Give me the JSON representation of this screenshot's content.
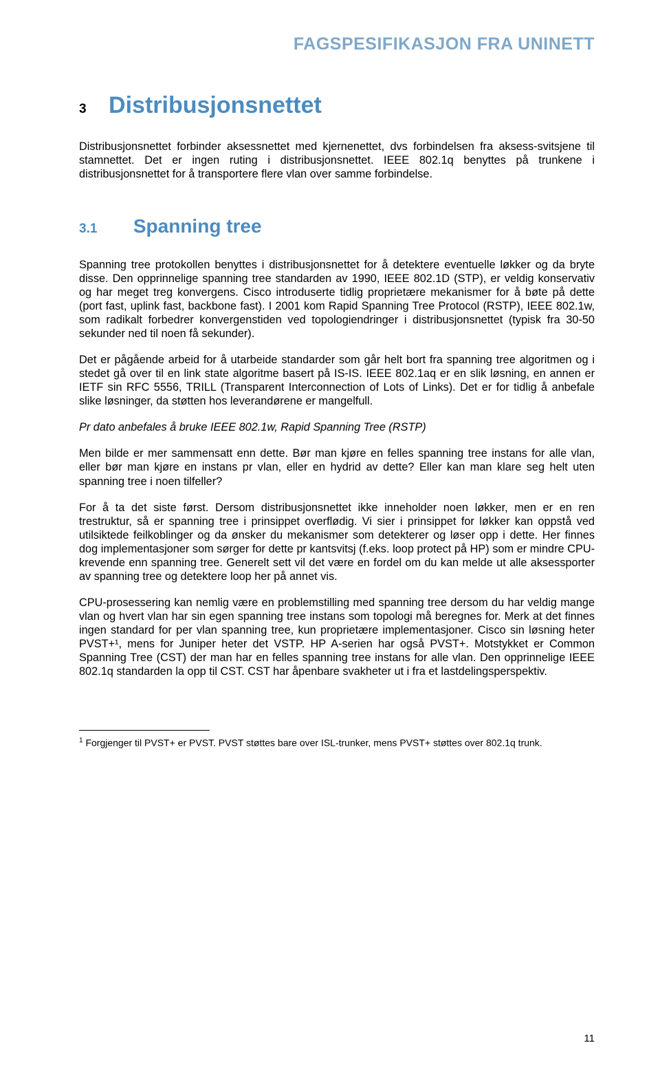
{
  "header": {
    "title": "FAGSPESIFIKASJON FRA UNINETT"
  },
  "section": {
    "number": "3",
    "title": "Distribusjonsnettet",
    "intro": "Distribusjonsnettet forbinder aksessnettet med kjernenettet, dvs forbindelsen fra aksess-svitsjene til stamnettet. Det er ingen ruting i distribusjonsnettet. IEEE 802.1q benyttes på trunkene i distribusjonsnettet for å transportere flere vlan over samme forbindelse."
  },
  "subsection": {
    "number": "3.1",
    "title": "Spanning tree",
    "paragraphs": [
      "Spanning tree protokollen benyttes i distribusjonsnettet for å detektere eventuelle løkker og da bryte disse. Den opprinnelige spanning tree standarden av 1990, IEEE 802.1D (STP), er veldig konservativ og har meget treg konvergens. Cisco introduserte tidlig proprietære mekanismer for å bøte på dette (port fast, uplink fast, backbone fast). I 2001 kom Rapid Spanning Tree Protocol (RSTP), IEEE 802.1w, som radikalt forbedrer konvergenstiden ved topologiendringer i distribusjonsnettet (typisk fra 30-50 sekunder ned til noen få sekunder).",
      "Det er pågående arbeid for å utarbeide standarder som går helt bort fra spanning tree algoritmen og i stedet gå over til en link state algoritme basert på IS-IS. IEEE 802.1aq er en slik løsning, en annen er IETF sin RFC 5556, TRILL (Transparent Interconnection of Lots of Links). Det er for tidlig å anbefale slike løsninger, da støtten hos leverandørene er mangelfull."
    ],
    "italic_line": "Pr dato anbefales å bruke IEEE 802.1w, Rapid Spanning Tree (RSTP)",
    "paragraphs_after": [
      "Men bilde er mer sammensatt enn dette. Bør man kjøre en felles spanning tree instans for alle vlan, eller bør man kjøre en instans pr vlan, eller en hydrid av dette? Eller kan man klare seg helt uten spanning tree i noen tilfeller?",
      "For å ta det siste først. Dersom distribusjonsnettet ikke inneholder noen løkker, men er en ren trestruktur, så er spanning tree i prinsippet overflødig. Vi sier i prinsippet for løkker kan oppstå ved utilsiktede feilkoblinger og da ønsker du mekanismer som detekterer og løser opp i dette. Her finnes dog implementasjoner som sørger for dette pr kantsvitsj (f.eks. loop protect på HP) som er mindre CPU-krevende enn spanning tree. Generelt sett vil det være en fordel om du kan melde ut alle aksessporter av spanning tree og detektere loop her på annet vis.",
      "CPU-prosessering kan nemlig være en problemstilling med spanning tree dersom du har veldig mange vlan og hvert vlan har sin egen spanning tree instans som topologi må beregnes for. Merk at det finnes ingen standard for per vlan spanning tree, kun proprietære implementasjoner. Cisco sin løsning heter PVST+¹, mens for Juniper heter det VSTP. HP A-serien har også PVST+. Motstykket er Common Spanning Tree (CST) der man har en felles spanning tree instans for alle vlan. Den opprinnelige IEEE 802.1q standarden la opp til CST. CST har åpenbare svakheter ut i fra et lastdelingsperspektiv."
    ]
  },
  "footnote": {
    "marker": "1",
    "text": "Forgjenger til PVST+ er PVST. PVST støttes bare over ISL-trunker, mens PVST+ støttes over 802.1q trunk."
  },
  "page_number": "11",
  "colors": {
    "header_color": "#7fa8c9",
    "heading_color": "#4b8bbf",
    "text_color": "#000000",
    "background": "#ffffff"
  }
}
